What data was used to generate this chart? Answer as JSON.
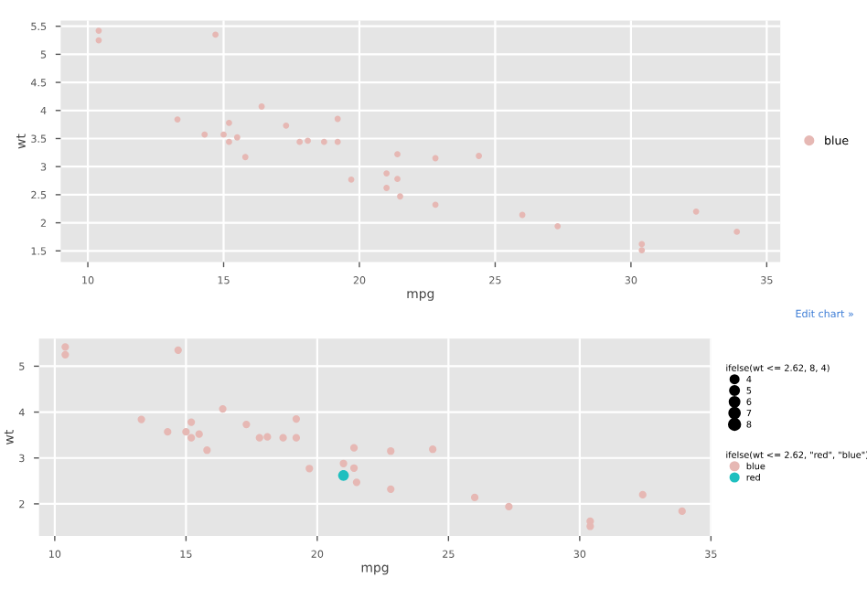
{
  "chart_data": [
    {
      "type": "scatter",
      "xlabel": "mpg",
      "ylabel": "wt",
      "xlim": [
        9.0,
        35.5
      ],
      "ylim": [
        1.3,
        5.6
      ],
      "xticks": [
        10,
        15,
        20,
        25,
        30,
        35
      ],
      "yticks": [
        1.5,
        2,
        2.5,
        3,
        3.5,
        4,
        4.5,
        5,
        5.5
      ],
      "grid": true,
      "legend": "right",
      "marker": "circle",
      "annotations": [
        "Edit chart »"
      ],
      "series": [
        {
          "name": "blue",
          "color": "#e6b8b4",
          "x": [
            21.0,
            21.0,
            22.8,
            21.4,
            18.7,
            18.1,
            14.3,
            24.4,
            22.8,
            19.2,
            17.8,
            16.4,
            17.3,
            15.2,
            10.4,
            10.4,
            14.7,
            32.4,
            30.4,
            33.9,
            21.5,
            15.5,
            15.2,
            13.3,
            19.2,
            27.3,
            26.0,
            30.4,
            15.8,
            19.7,
            15.0,
            21.4
          ],
          "values": [
            2.62,
            2.88,
            2.32,
            3.22,
            3.44,
            3.46,
            3.57,
            3.19,
            3.15,
            3.44,
            3.44,
            4.07,
            3.73,
            3.78,
            5.25,
            5.42,
            5.35,
            2.2,
            1.62,
            1.84,
            2.47,
            3.52,
            3.44,
            3.84,
            3.85,
            1.94,
            2.14,
            1.51,
            3.17,
            2.77,
            3.57,
            2.78
          ]
        }
      ]
    },
    {
      "type": "bubble",
      "xlabel": "mpg",
      "ylabel": "wt",
      "xlim": [
        9.4,
        35.0
      ],
      "ylim": [
        1.3,
        5.6
      ],
      "xticks": [
        10,
        15,
        20,
        25,
        30,
        35
      ],
      "yticks": [
        2,
        3,
        4,
        5
      ],
      "grid": true,
      "legend": "right",
      "marker": "circle",
      "legend_title": [
        "ifelse(wt <= 2.62, 8, 4)",
        "ifelse(wt <= 2.62, \"red\", \"blue\")"
      ],
      "size_legend": [
        4,
        5,
        6,
        7,
        8
      ],
      "series": [
        {
          "name": "blue",
          "color": "#e6b8b4",
          "x": [
            21.0,
            22.8,
            21.4,
            18.7,
            18.1,
            14.3,
            24.4,
            22.8,
            19.2,
            17.8,
            16.4,
            17.3,
            15.2,
            10.4,
            10.4,
            14.7,
            32.4,
            30.4,
            33.9,
            21.5,
            15.5,
            15.2,
            13.3,
            19.2,
            27.3,
            26.0,
            30.4,
            15.8,
            19.7,
            15.0,
            21.4
          ],
          "values": [
            2.88,
            2.32,
            3.22,
            3.44,
            3.46,
            3.57,
            3.19,
            3.15,
            3.44,
            3.44,
            4.07,
            3.73,
            3.78,
            5.25,
            5.42,
            5.35,
            2.2,
            1.62,
            1.84,
            2.47,
            3.52,
            3.44,
            3.84,
            3.85,
            1.94,
            2.14,
            1.51,
            3.17,
            2.77,
            3.57,
            2.78
          ],
          "sizes": [
            4,
            4,
            4,
            4,
            4,
            4,
            4,
            4,
            4,
            4,
            4,
            4,
            4,
            4,
            4,
            4,
            4,
            4,
            4,
            4,
            4,
            4,
            4,
            4,
            4,
            4,
            4,
            4,
            4,
            4,
            4
          ]
        },
        {
          "name": "red",
          "color": "#1fbfbf",
          "x": [
            21.0
          ],
          "values": [
            2.62
          ],
          "sizes": [
            8
          ]
        }
      ]
    }
  ]
}
